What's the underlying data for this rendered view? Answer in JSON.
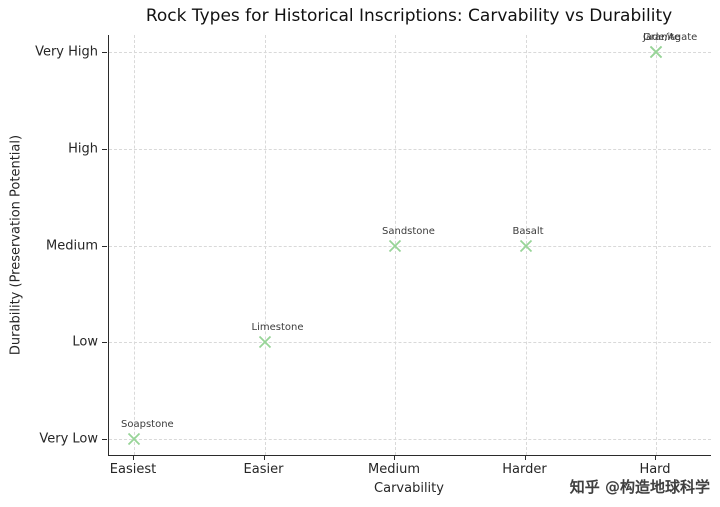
{
  "chart_data": {
    "type": "scatter",
    "title": "Rock Types for Historical Inscriptions: Carvability vs Durability",
    "xlabel": "Carvability",
    "ylabel": "Durability (Preservation Potential)",
    "x_ticks": [
      "Easiest",
      "Easier",
      "Medium",
      "Harder",
      "Hard"
    ],
    "y_ticks": [
      "Very Low",
      "Low",
      "Medium",
      "High",
      "Very High"
    ],
    "grid": "dashed",
    "legend": "none",
    "marker": {
      "shape": "x",
      "color": "#97d497",
      "size": 13
    },
    "points": [
      {
        "label": "Soapstone",
        "x": 0,
        "y": 0
      },
      {
        "label": "Limestone",
        "x": 1,
        "y": 1
      },
      {
        "label": "Sandstone",
        "x": 2,
        "y": 2
      },
      {
        "label": "Basalt",
        "x": 3,
        "y": 2
      },
      {
        "label": "Granite",
        "x": 4,
        "y": 4
      },
      {
        "label": "Jade/Agate",
        "x": 4,
        "y": 4
      }
    ]
  },
  "watermark": "知乎 @构造地球科学"
}
